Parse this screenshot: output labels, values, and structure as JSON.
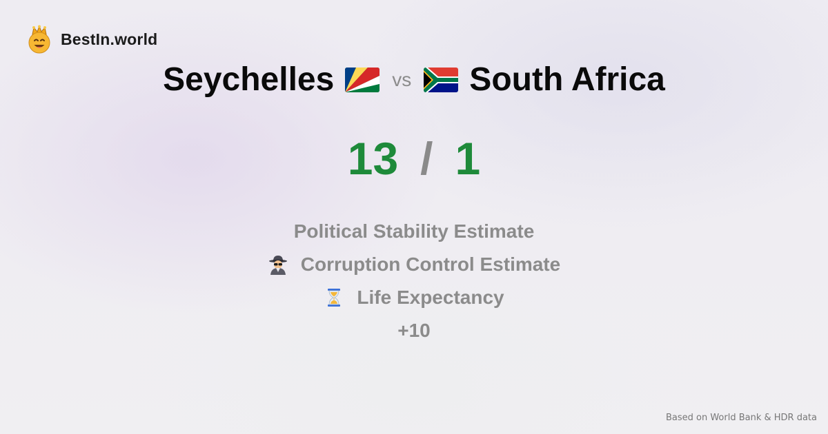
{
  "brand": {
    "name": "BestIn.world",
    "logo_icon": "crowned-smiley-icon"
  },
  "comparison": {
    "left_country": "Seychelles",
    "left_flag_icon": "seychelles-flag-icon",
    "vs_label": "vs",
    "right_flag_icon": "south-africa-flag-icon",
    "right_country": "South Africa"
  },
  "score": {
    "left": "13",
    "separator": "/",
    "right": "1",
    "color": "#1e8a3a"
  },
  "metrics": [
    {
      "label": "Political Stability Estimate",
      "icon": ""
    },
    {
      "label": "Corruption Control Estimate",
      "icon": "spy-detective-icon"
    },
    {
      "label": "Life Expectancy",
      "icon": "hourglass-icon"
    },
    {
      "label": "+10",
      "icon": ""
    }
  ],
  "footer": {
    "text": "Based on World Bank & HDR data"
  }
}
